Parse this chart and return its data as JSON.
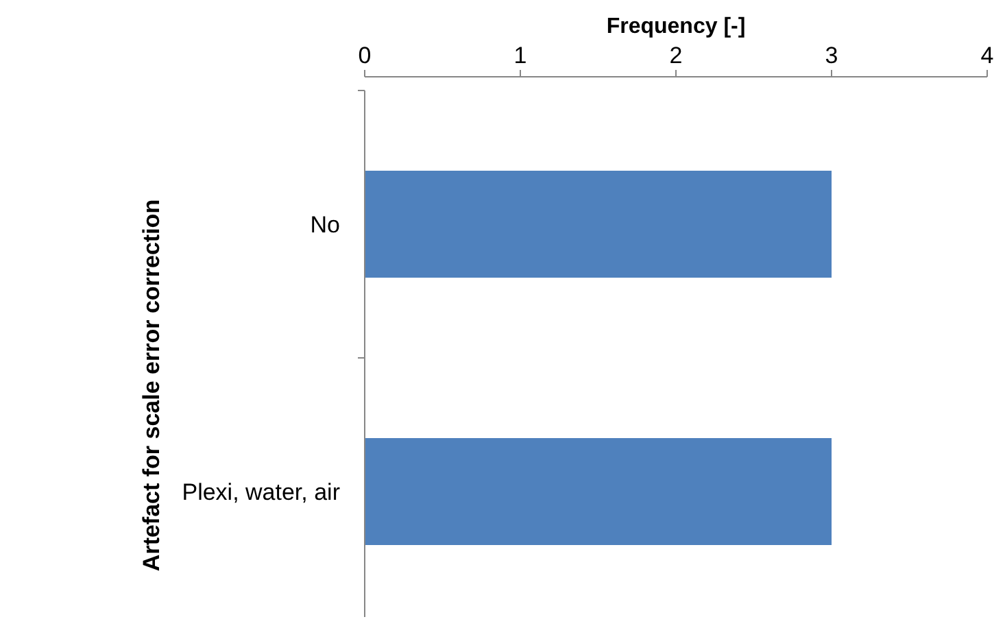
{
  "chart_data": {
    "type": "bar",
    "orientation": "horizontal",
    "xlabel": "Frequency [-]",
    "ylabel": "Artefact for scale error correction",
    "categories": [
      "No",
      "Plexi, water, air"
    ],
    "values": [
      3,
      3
    ],
    "color": "#4f81bd",
    "xlim": [
      0,
      4
    ],
    "xticks": [
      0,
      1,
      2,
      3,
      4
    ],
    "grid": false
  }
}
